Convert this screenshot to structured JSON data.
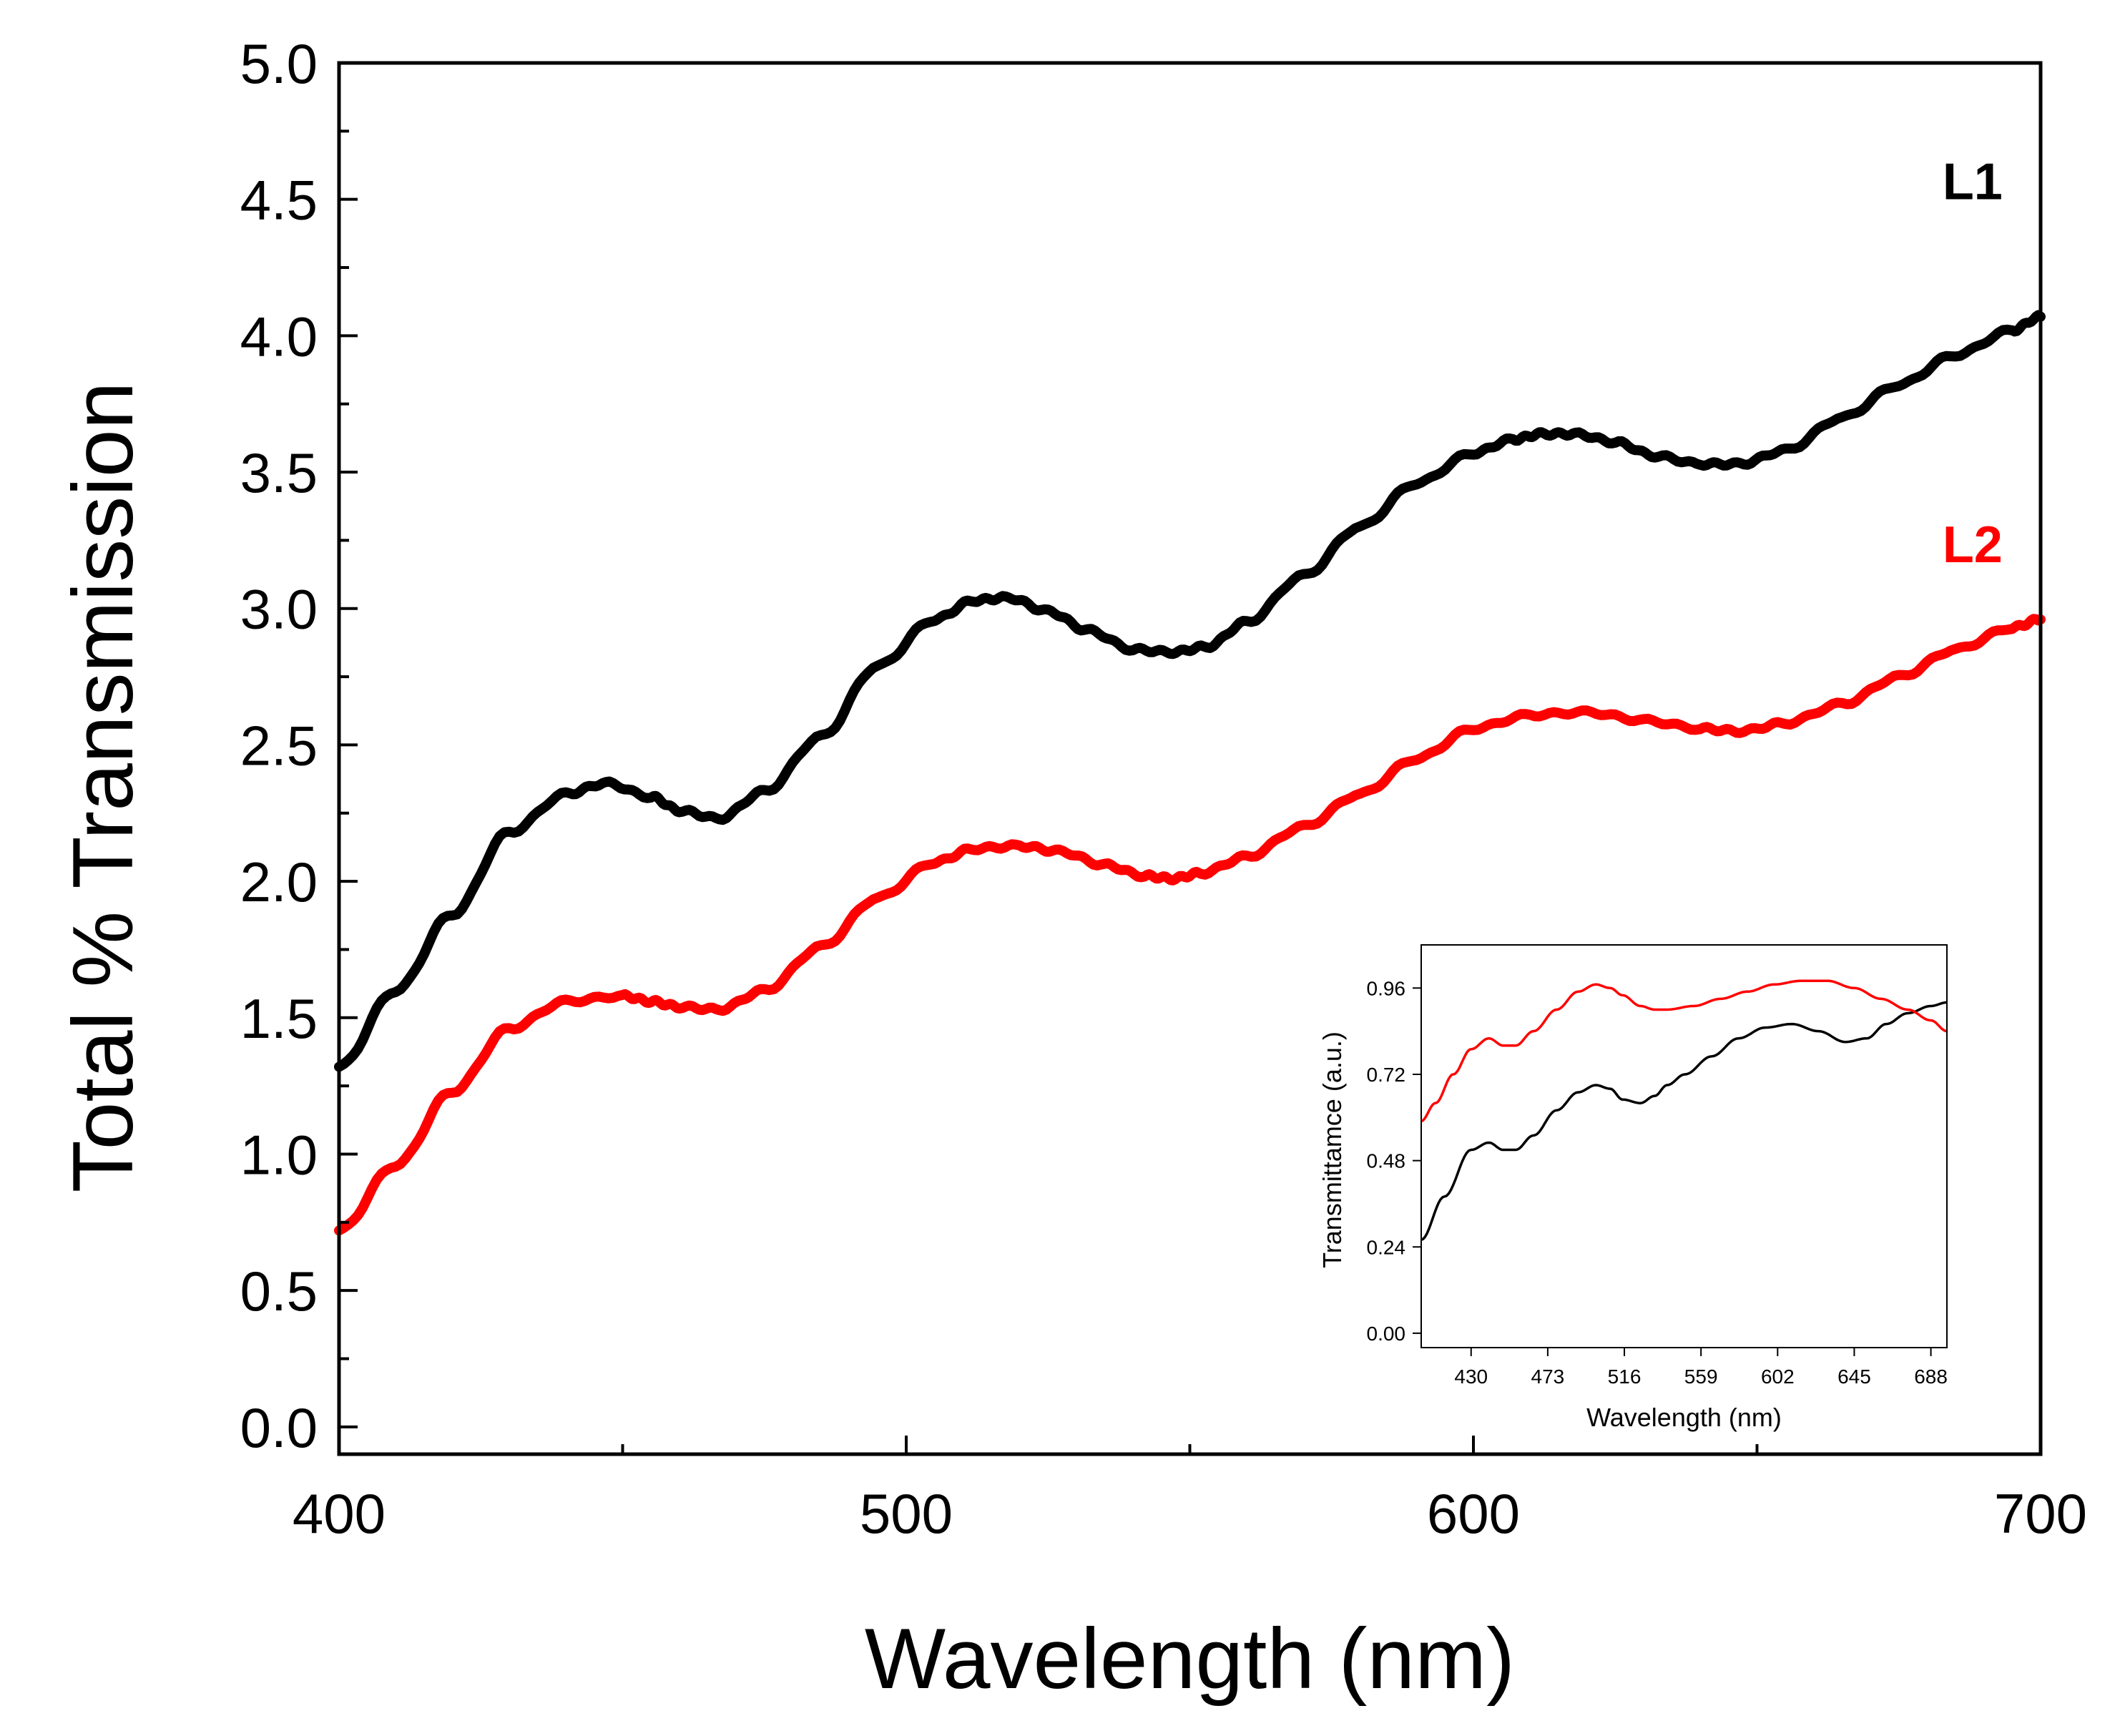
{
  "chart_data": [
    {
      "type": "line",
      "title": "",
      "xlabel": "Wavelength (nm)",
      "ylabel": "Total % Transmission",
      "xlim": [
        400,
        700
      ],
      "ylim": [
        -0.1,
        5.0
      ],
      "x_ticks": [
        400,
        500,
        600,
        700
      ],
      "x_tick_labels": [
        "400",
        "500",
        "600",
        "700"
      ],
      "x_minor_ticks": [
        450,
        550,
        650
      ],
      "y_ticks": [
        0.0,
        0.5,
        1.0,
        1.5,
        2.0,
        2.5,
        3.0,
        3.5,
        4.0,
        4.5,
        5.0
      ],
      "y_tick_labels": [
        "0.0",
        "0.5",
        "1.0",
        "1.5",
        "2.0",
        "2.5",
        "3.0",
        "3.5",
        "4.0",
        "4.5",
        "5.0"
      ],
      "y_minor_ticks": [
        0.25,
        0.75,
        1.25,
        1.75,
        2.25,
        2.75,
        3.25,
        3.75,
        4.25,
        4.75
      ],
      "grid": false,
      "series": [
        {
          "name": "L1",
          "color": "#000000",
          "x": [
            400,
            410,
            420,
            430,
            440,
            447,
            455,
            460,
            467,
            475,
            485,
            495,
            505,
            512,
            518,
            525,
            532,
            540,
            547,
            553,
            560,
            570,
            580,
            590,
            600,
            607,
            612,
            618,
            625,
            632,
            640,
            647,
            655,
            665,
            675,
            685,
            695,
            700
          ],
          "y": [
            1.32,
            1.6,
            1.88,
            2.18,
            2.32,
            2.36,
            2.31,
            2.26,
            2.23,
            2.33,
            2.53,
            2.79,
            2.96,
            3.03,
            3.04,
            2.99,
            2.92,
            2.85,
            2.84,
            2.86,
            2.95,
            3.12,
            3.3,
            3.46,
            3.57,
            3.62,
            3.64,
            3.64,
            3.61,
            3.56,
            3.53,
            3.53,
            3.58,
            3.7,
            3.82,
            3.93,
            4.02,
            4.07
          ]
        },
        {
          "name": "L2",
          "color": "#ff0000",
          "x": [
            400,
            410,
            420,
            430,
            440,
            450,
            455,
            460,
            467,
            475,
            485,
            495,
            505,
            512,
            520,
            527,
            535,
            542,
            547,
            552,
            560,
            570,
            580,
            590,
            600,
            610,
            620,
            630,
            640,
            647,
            655,
            665,
            675,
            685,
            695,
            700
          ],
          "y": [
            0.72,
            0.96,
            1.23,
            1.46,
            1.56,
            1.58,
            1.56,
            1.54,
            1.53,
            1.6,
            1.76,
            1.94,
            2.07,
            2.12,
            2.13,
            2.11,
            2.06,
            2.02,
            2.01,
            2.03,
            2.09,
            2.2,
            2.32,
            2.45,
            2.56,
            2.61,
            2.62,
            2.59,
            2.56,
            2.55,
            2.58,
            2.65,
            2.75,
            2.85,
            2.93,
            2.96
          ]
        }
      ],
      "annotations": [
        {
          "text": "L1",
          "x": 688,
          "y": 4.5,
          "color": "#000000"
        },
        {
          "text": "L2",
          "x": 688,
          "y": 3.17,
          "color": "#ff0000"
        }
      ]
    },
    {
      "type": "line",
      "title": "",
      "xlabel": "Wavelength (nm)",
      "ylabel": "Transmittamce (a.u.)",
      "xlim": [
        402,
        697
      ],
      "ylim": [
        -0.04,
        1.08
      ],
      "x_ticks": [
        430,
        473,
        516,
        559,
        602,
        645,
        688
      ],
      "x_tick_labels": [
        "430",
        "473",
        "516",
        "559",
        "602",
        "645",
        "688"
      ],
      "y_ticks": [
        0.0,
        0.24,
        0.48,
        0.72,
        0.96
      ],
      "y_tick_labels": [
        "0.00",
        "0.24",
        "0.48",
        "0.72",
        "0.96"
      ],
      "grid": false,
      "series": [
        {
          "name": "black",
          "color": "#000000",
          "x": [
            402,
            415,
            430,
            440,
            448,
            455,
            465,
            478,
            490,
            500,
            508,
            515,
            525,
            533,
            540,
            550,
            565,
            580,
            595,
            610,
            625,
            640,
            652,
            663,
            675,
            688,
            697
          ],
          "y": [
            0.26,
            0.38,
            0.51,
            0.53,
            0.51,
            0.51,
            0.55,
            0.62,
            0.67,
            0.69,
            0.68,
            0.65,
            0.64,
            0.66,
            0.69,
            0.72,
            0.77,
            0.82,
            0.85,
            0.86,
            0.84,
            0.81,
            0.82,
            0.86,
            0.89,
            0.91,
            0.92
          ]
        },
        {
          "name": "red",
          "color": "#ff0000",
          "x": [
            402,
            410,
            420,
            430,
            440,
            448,
            455,
            465,
            478,
            490,
            500,
            508,
            515,
            525,
            533,
            540,
            555,
            570,
            585,
            600,
            615,
            630,
            645,
            660,
            675,
            688,
            697
          ],
          "y": [
            0.59,
            0.64,
            0.72,
            0.79,
            0.82,
            0.8,
            0.8,
            0.84,
            0.9,
            0.95,
            0.97,
            0.96,
            0.94,
            0.91,
            0.9,
            0.9,
            0.91,
            0.93,
            0.95,
            0.97,
            0.98,
            0.98,
            0.96,
            0.93,
            0.9,
            0.87,
            0.84
          ]
        }
      ]
    }
  ]
}
